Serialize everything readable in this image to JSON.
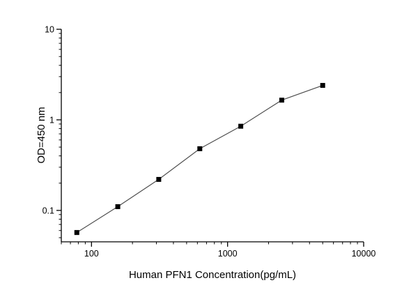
{
  "chart_data": {
    "type": "line",
    "title": "",
    "xlabel": "Human PFN1 Concentration(pg/mL)",
    "ylabel": "OD=450 nm",
    "x": [
      78,
      156,
      312,
      625,
      1250,
      2500,
      5000
    ],
    "y": [
      0.057,
      0.11,
      0.22,
      0.48,
      0.85,
      1.65,
      2.4
    ],
    "xscale": "log",
    "yscale": "log",
    "xlim": [
      60,
      10000
    ],
    "ylim": [
      0.045,
      10
    ],
    "x_tick_values": [
      100,
      1000,
      10000
    ],
    "x_tick_labels": [
      "100",
      "1000",
      "10000"
    ],
    "y_tick_values": [
      0.1,
      1,
      10
    ],
    "y_tick_labels": [
      "0.1",
      "1",
      "10"
    ],
    "marker": "square",
    "marker_color": "#000000",
    "line_color": "#4d4d4d",
    "axis_color": "#000000",
    "grid": false,
    "legend_position": "none"
  }
}
